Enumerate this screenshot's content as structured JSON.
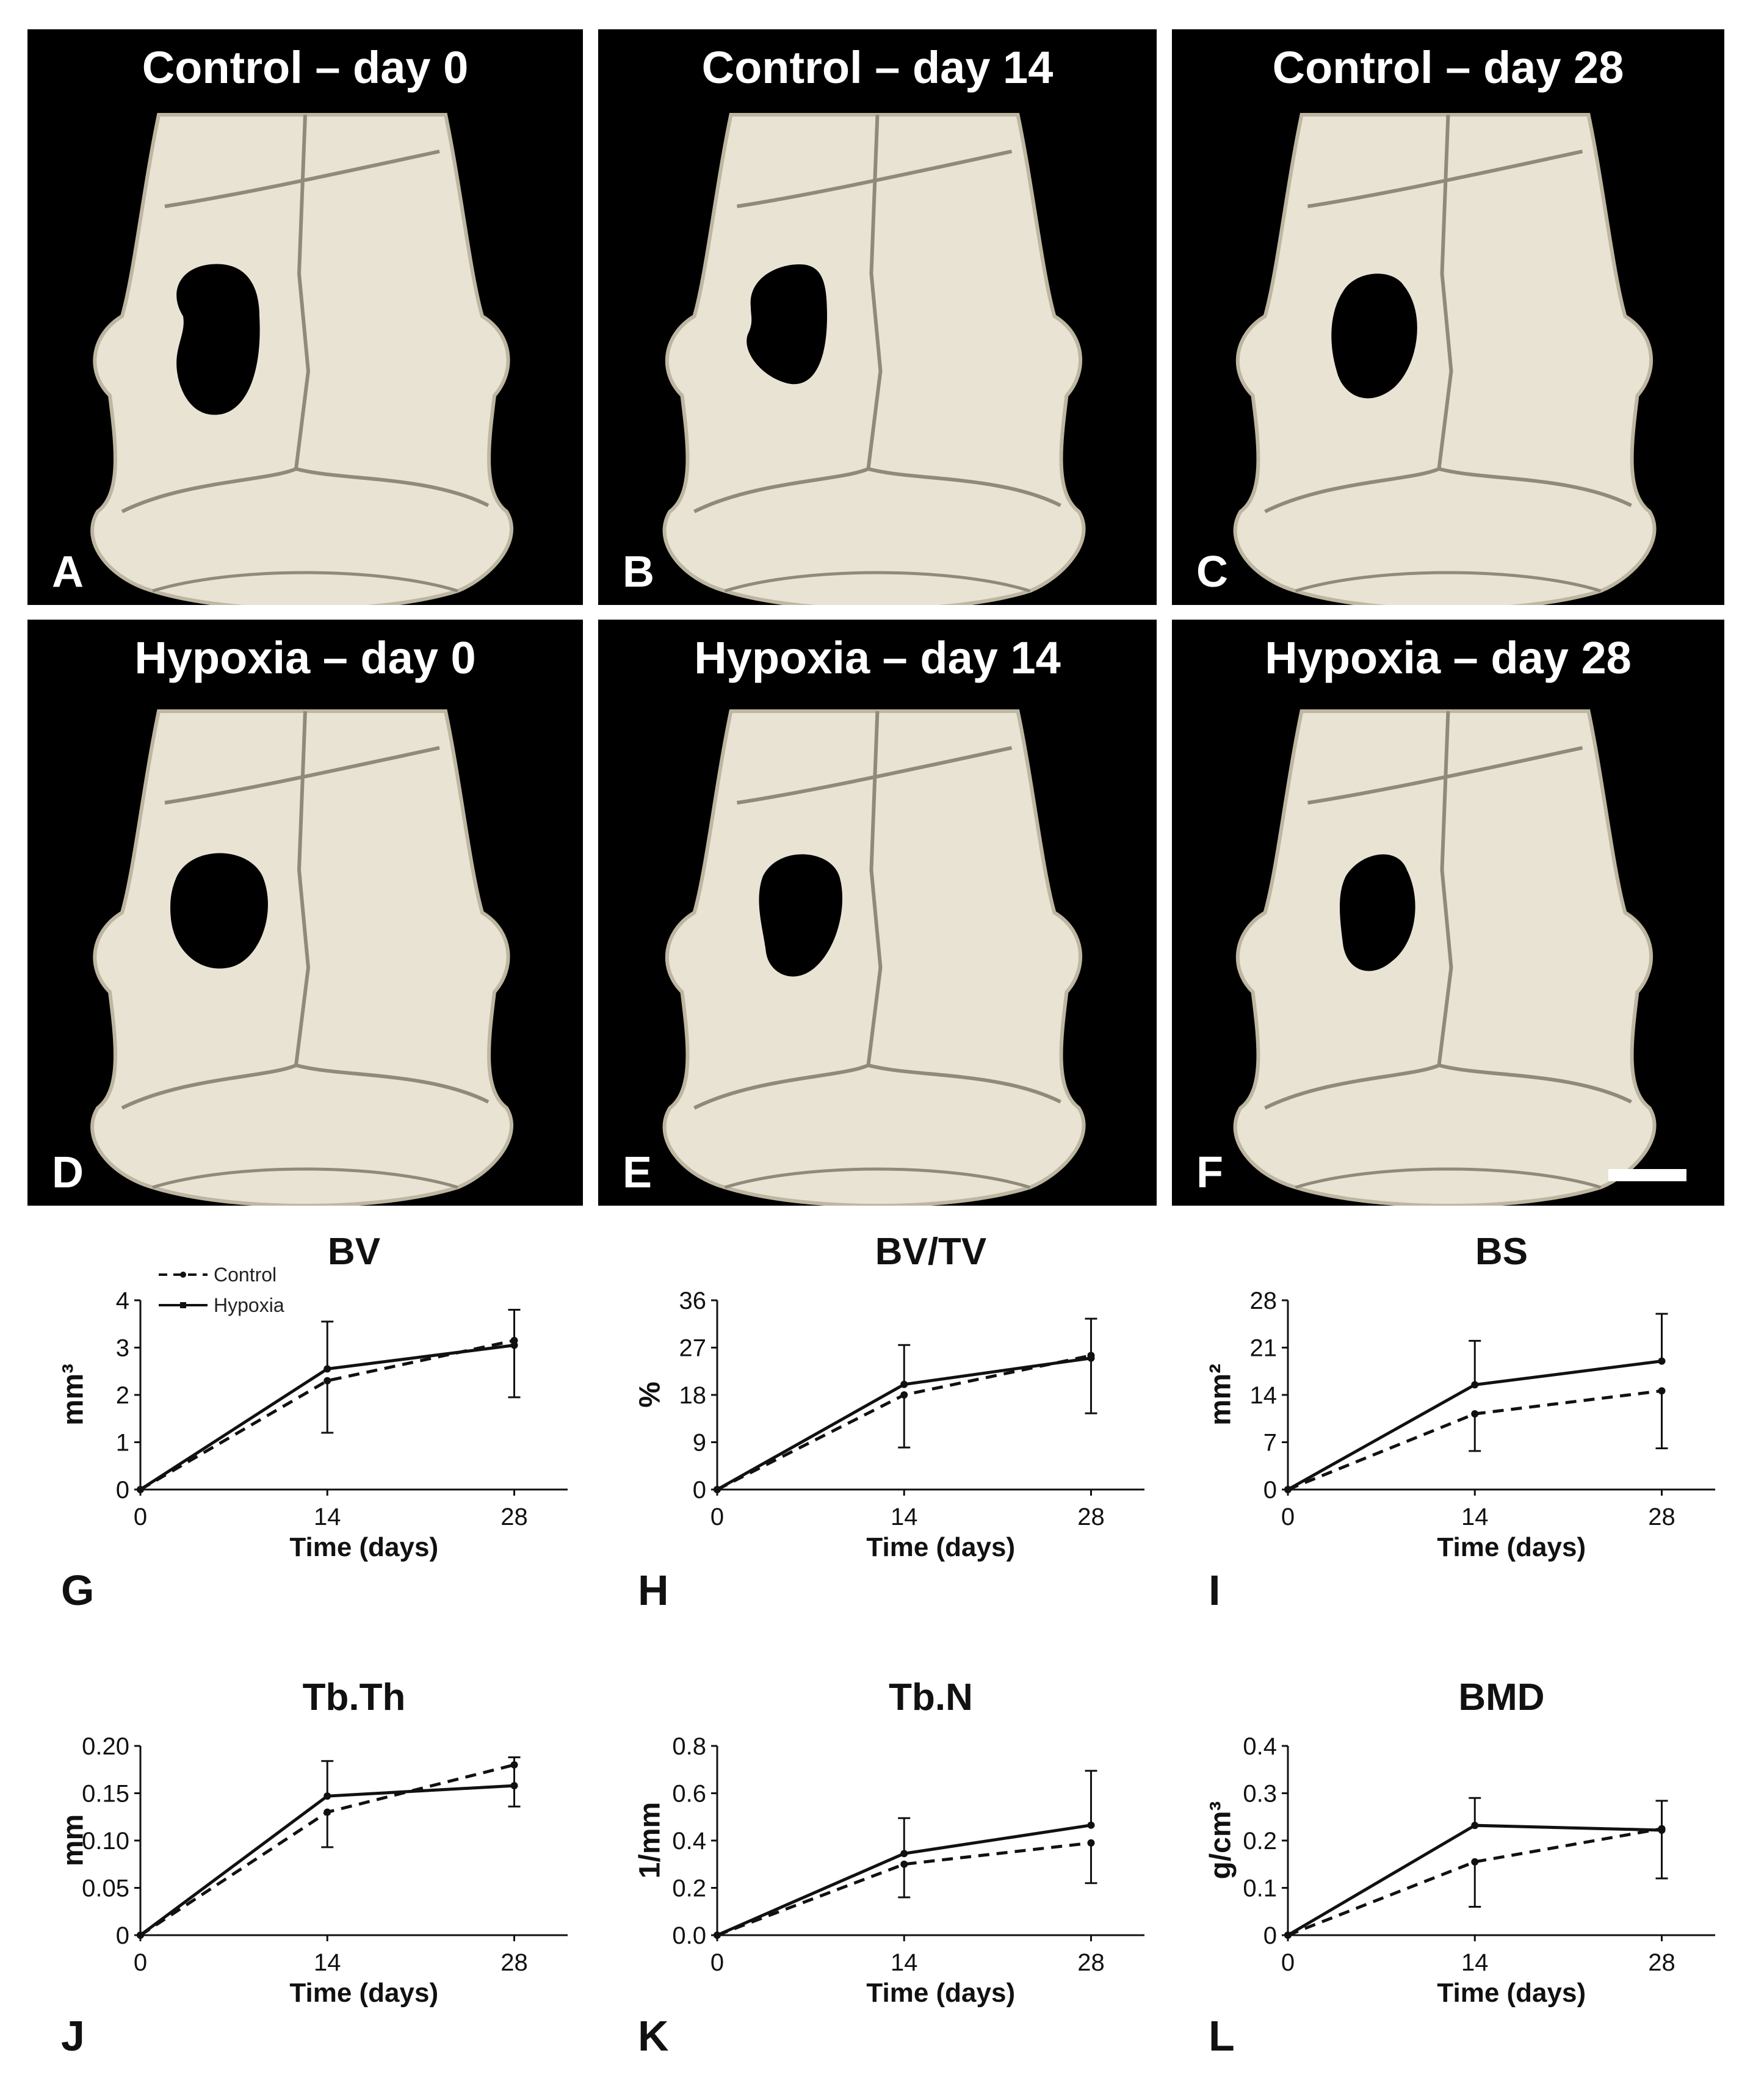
{
  "panels": [
    {
      "title": "Control – day 0",
      "letter": "A",
      "scale_bar": false
    },
    {
      "title": "Control – day 14",
      "letter": "B",
      "scale_bar": false
    },
    {
      "title": "Control – day 28",
      "letter": "C",
      "scale_bar": false
    },
    {
      "title": "Hypoxia – day 0",
      "letter": "D",
      "scale_bar": false
    },
    {
      "title": "Hypoxia – day 14",
      "letter": "E",
      "scale_bar": false
    },
    {
      "title": "Hypoxia – day 28",
      "letter": "F",
      "scale_bar": true
    }
  ],
  "colors": {
    "panel_background": "#000000",
    "bone": "#e8e3d3",
    "suture": "#8f8a7a",
    "line": "#111111"
  },
  "legend": {
    "control": "Control",
    "hypoxia": "Hypoxia"
  },
  "chart_data": [
    {
      "type": "line",
      "letter": "G",
      "title": "BV",
      "ylabel": "mm³",
      "xlabel": "Time (days)",
      "x": [
        0,
        14,
        28
      ],
      "xticks": [
        "0",
        "14",
        "28"
      ],
      "ylim": [
        0,
        4
      ],
      "yticks": [
        "0",
        "1",
        "2",
        "3",
        "4"
      ],
      "show_legend": true,
      "series": [
        {
          "name": "Control",
          "style": "dashed",
          "values": [
            0,
            2.3,
            3.15
          ],
          "err_low": [
            0,
            1.1,
            1.2
          ]
        },
        {
          "name": "Hypoxia",
          "style": "solid",
          "values": [
            0,
            2.55,
            3.05
          ],
          "err_high": [
            0,
            1.0,
            0.75
          ]
        }
      ]
    },
    {
      "type": "line",
      "letter": "H",
      "title": "BV/TV",
      "ylabel": "%",
      "xlabel": "Time (days)",
      "x": [
        0,
        14,
        28
      ],
      "xticks": [
        "0",
        "14",
        "28"
      ],
      "ylim": [
        0,
        36
      ],
      "yticks": [
        "0",
        "9",
        "18",
        "27",
        "36"
      ],
      "show_legend": false,
      "series": [
        {
          "name": "Control",
          "style": "dashed",
          "values": [
            0,
            18,
            25.5
          ],
          "err_low": [
            0,
            10,
            11
          ]
        },
        {
          "name": "Hypoxia",
          "style": "solid",
          "values": [
            0,
            20,
            25
          ],
          "err_high": [
            0,
            7.5,
            7.5
          ]
        }
      ]
    },
    {
      "type": "line",
      "letter": "I",
      "title": "BS",
      "ylabel": "mm²",
      "xlabel": "Time (days)",
      "x": [
        0,
        14,
        28
      ],
      "xticks": [
        "0",
        "14",
        "28"
      ],
      "ylim": [
        0,
        28
      ],
      "yticks": [
        "0",
        "7",
        "14",
        "21",
        "28"
      ],
      "show_legend": false,
      "series": [
        {
          "name": "Control",
          "style": "dashed",
          "values": [
            0,
            11.2,
            14.6
          ],
          "err_low": [
            0,
            5.5,
            8.5
          ]
        },
        {
          "name": "Hypoxia",
          "style": "solid",
          "values": [
            0,
            15.5,
            19
          ],
          "err_high": [
            0,
            6.5,
            7
          ]
        }
      ]
    },
    {
      "type": "line",
      "letter": "J",
      "title": "Tb.Th",
      "ylabel": "mm",
      "xlabel": "Time (days)",
      "x": [
        0,
        14,
        28
      ],
      "xticks": [
        "0",
        "14",
        "28"
      ],
      "ylim": [
        0,
        0.2
      ],
      "yticks": [
        "0",
        "0.05",
        "0.10",
        "0.15",
        "0.20"
      ],
      "show_legend": false,
      "series": [
        {
          "name": "Control",
          "style": "dashed",
          "values": [
            0,
            0.13,
            0.18
          ],
          "err_low": [
            0,
            0.037,
            0
          ]
        },
        {
          "name": "Hypoxia",
          "style": "solid",
          "values": [
            0,
            0.147,
            0.158
          ],
          "err_high": [
            0,
            0.037,
            0.03
          ],
          "err_low": [
            0,
            0,
            0.022
          ]
        }
      ]
    },
    {
      "type": "line",
      "letter": "K",
      "title": "Tb.N",
      "ylabel": "1/mm",
      "xlabel": "Time (days)",
      "x": [
        0,
        14,
        28
      ],
      "xticks": [
        "0",
        "14",
        "28"
      ],
      "ylim": [
        0,
        0.8
      ],
      "yticks": [
        "0.0",
        "0.2",
        "0.4",
        "0.6",
        "0.8"
      ],
      "show_legend": false,
      "series": [
        {
          "name": "Control",
          "style": "dashed",
          "values": [
            0,
            0.3,
            0.39
          ],
          "err_low": [
            0,
            0.14,
            0.17
          ]
        },
        {
          "name": "Hypoxia",
          "style": "solid",
          "values": [
            0,
            0.345,
            0.465
          ],
          "err_high": [
            0,
            0.15,
            0.23
          ]
        }
      ]
    },
    {
      "type": "line",
      "letter": "L",
      "title": "BMD",
      "ylabel": "g/cm³",
      "xlabel": "Time (days)",
      "x": [
        0,
        14,
        28
      ],
      "xticks": [
        "0",
        "14",
        "28"
      ],
      "ylim": [
        0,
        0.4
      ],
      "yticks": [
        "0",
        "0.1",
        "0.2",
        "0.3",
        "0.4"
      ],
      "show_legend": false,
      "series": [
        {
          "name": "Control",
          "style": "dashed",
          "values": [
            0,
            0.155,
            0.225
          ],
          "err_low": [
            0,
            0.095,
            0.105
          ]
        },
        {
          "name": "Hypoxia",
          "style": "solid",
          "values": [
            0,
            0.232,
            0.222
          ],
          "err_high": [
            0,
            0.058,
            0.062
          ]
        }
      ]
    }
  ]
}
